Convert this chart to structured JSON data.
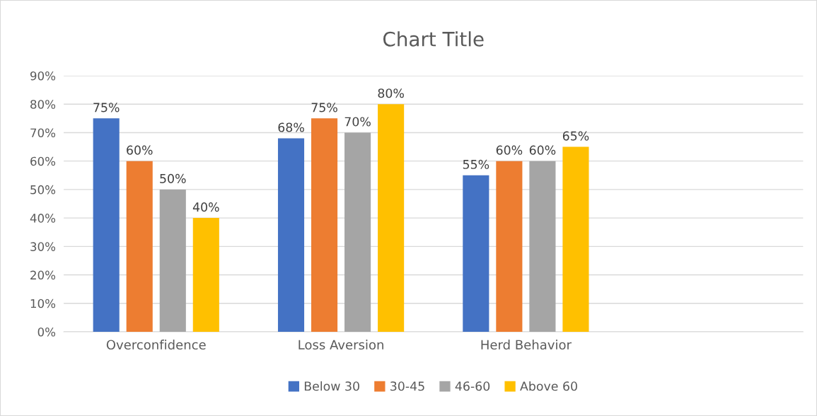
{
  "chart_data": {
    "type": "bar",
    "title": "Chart Title",
    "categories": [
      "Overconfidence",
      "Loss Aversion",
      "Herd Behavior",
      null
    ],
    "series": [
      {
        "name": "Below 30",
        "color": "#4472c4",
        "values": [
          75,
          68,
          55,
          null
        ],
        "value_labels": [
          "75%",
          "68%",
          "55%",
          null
        ]
      },
      {
        "name": "30-45",
        "color": "#ed7d31",
        "values": [
          60,
          75,
          60,
          null
        ],
        "value_labels": [
          "60%",
          "75%",
          "60%",
          null
        ]
      },
      {
        "name": "46-60",
        "color": "#a5a5a5",
        "values": [
          50,
          70,
          60,
          null
        ],
        "value_labels": [
          "50%",
          "70%",
          "60%",
          null
        ]
      },
      {
        "name": "Above 60",
        "color": "#ffc000",
        "values": [
          40,
          80,
          65,
          null
        ],
        "value_labels": [
          "40%",
          "80%",
          "65%",
          null
        ]
      }
    ],
    "ylim": [
      0,
      90
    ],
    "yticks": [
      {
        "value": 0,
        "label": "0%"
      },
      {
        "value": 10,
        "label": "10%"
      },
      {
        "value": 20,
        "label": "20%"
      },
      {
        "value": 30,
        "label": "30%"
      },
      {
        "value": 40,
        "label": "40%"
      },
      {
        "value": 50,
        "label": "50%"
      },
      {
        "value": 60,
        "label": "60%"
      },
      {
        "value": 70,
        "label": "70%"
      },
      {
        "value": 80,
        "label": "80%"
      },
      {
        "value": 90,
        "label": "90%"
      }
    ],
    "grid": "y",
    "legend": "bottom"
  }
}
